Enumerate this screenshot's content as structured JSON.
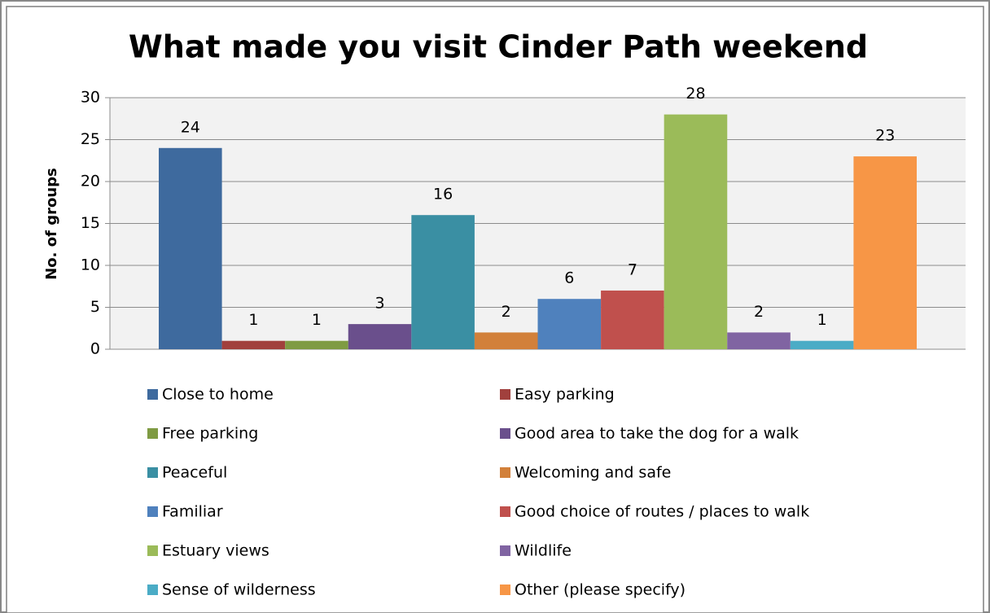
{
  "chart_data": {
    "type": "bar",
    "title": "What made you visit Cinder Path weekend",
    "y_label": "No. of groups",
    "ylim": [
      0,
      30
    ],
    "yticks": [
      0,
      5,
      10,
      15,
      20,
      25,
      30
    ],
    "grid": true,
    "legend": "bottom",
    "series": [
      {
        "name": "Close to home",
        "color": "#3E6A9E",
        "values": [
          24
        ]
      },
      {
        "name": "Easy parking",
        "color": "#A1403D",
        "values": [
          1
        ]
      },
      {
        "name": "Free parking",
        "color": "#7F9B43",
        "values": [
          1
        ]
      },
      {
        "name": "Good area to take the dog for a walk",
        "color": "#6A4F8C",
        "values": [
          3
        ]
      },
      {
        "name": "Peaceful",
        "color": "#3A8FA3",
        "values": [
          16
        ]
      },
      {
        "name": "Welcoming and safe",
        "color": "#D2803A",
        "values": [
          2
        ]
      },
      {
        "name": "Familiar",
        "color": "#4F81BD",
        "values": [
          6
        ]
      },
      {
        "name": "Good choice of routes / places to walk",
        "color": "#C0504D",
        "values": [
          7
        ]
      },
      {
        "name": "Estuary views",
        "color": "#9BBB59",
        "values": [
          28
        ]
      },
      {
        "name": "Wildlife",
        "color": "#8064A2",
        "values": [
          2
        ]
      },
      {
        "name": "Sense of wilderness",
        "color": "#4BACC6",
        "values": [
          1
        ]
      },
      {
        "name": "Other (please specify)",
        "color": "#F79646",
        "values": [
          23
        ]
      }
    ]
  }
}
